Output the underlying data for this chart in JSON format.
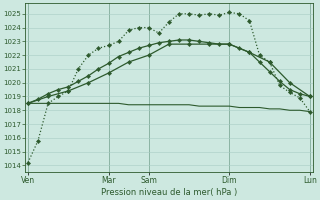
{
  "xlabel": "Pression niveau de la mer( hPa )",
  "bg_color": "#cde8e0",
  "grid_color": "#a8cdc5",
  "line_color": "#2d5a2d",
  "ylim": [
    1013.5,
    1025.8
  ],
  "xlim": [
    -0.3,
    28.3
  ],
  "yticks": [
    1014,
    1015,
    1016,
    1017,
    1018,
    1019,
    1020,
    1021,
    1022,
    1023,
    1024,
    1025
  ],
  "day_labels": [
    "Ven",
    "Mar",
    "Sam",
    "Dim",
    "Lun"
  ],
  "day_positions": [
    0,
    8,
    12,
    20,
    28
  ],
  "series": [
    {
      "x": [
        0,
        1,
        2,
        3,
        4,
        5,
        6,
        7,
        8,
        9,
        10,
        11,
        12,
        13,
        14,
        15,
        16,
        17,
        18,
        19,
        20,
        21,
        22,
        23,
        24,
        25,
        26,
        27,
        28
      ],
      "y": [
        1018.5,
        1018.5,
        1018.5,
        1018.5,
        1018.5,
        1018.5,
        1018.5,
        1018.5,
        1018.5,
        1018.5,
        1018.4,
        1018.4,
        1018.4,
        1018.4,
        1018.4,
        1018.4,
        1018.4,
        1018.3,
        1018.3,
        1018.3,
        1018.3,
        1018.2,
        1018.2,
        1018.2,
        1018.1,
        1018.1,
        1018.0,
        1018.0,
        1017.9
      ],
      "color": "#2d5a2d",
      "lw": 0.8,
      "ls": "-",
      "marker": null,
      "ms": 0
    },
    {
      "x": [
        0,
        1,
        2,
        3,
        4,
        5,
        6,
        7,
        8,
        9,
        10,
        11,
        12,
        13,
        14,
        15,
        16,
        17,
        18,
        19,
        20,
        21,
        22,
        23,
        24,
        25,
        26,
        27,
        28
      ],
      "y": [
        1014.2,
        1015.8,
        1018.5,
        1019.0,
        1019.4,
        1021.0,
        1022.0,
        1022.5,
        1022.7,
        1023.0,
        1023.8,
        1024.0,
        1024.0,
        1023.6,
        1024.4,
        1025.0,
        1025.0,
        1024.9,
        1025.0,
        1024.9,
        1025.1,
        1025.0,
        1024.5,
        1022.0,
        1021.5,
        1019.8,
        1019.3,
        1018.9,
        1017.9
      ],
      "color": "#2d5a2d",
      "lw": 0.9,
      "ls": ":",
      "marker": "D",
      "ms": 2.2
    },
    {
      "x": [
        0,
        1,
        2,
        3,
        4,
        5,
        6,
        7,
        8,
        9,
        10,
        11,
        12,
        13,
        14,
        15,
        16,
        17,
        18,
        19,
        20,
        21,
        22,
        23,
        24,
        25,
        26,
        27,
        28
      ],
      "y": [
        1018.5,
        1018.8,
        1019.2,
        1019.5,
        1019.7,
        1020.1,
        1020.5,
        1021.0,
        1021.4,
        1021.9,
        1022.2,
        1022.5,
        1022.7,
        1022.9,
        1023.0,
        1023.1,
        1023.1,
        1023.0,
        1022.9,
        1022.8,
        1022.8,
        1022.5,
        1022.2,
        1021.5,
        1020.8,
        1020.1,
        1019.5,
        1019.2,
        1019.0
      ],
      "color": "#2d5a2d",
      "lw": 0.9,
      "ls": "-",
      "marker": "D",
      "ms": 2.2
    },
    {
      "x": [
        0,
        2,
        4,
        6,
        8,
        10,
        12,
        14,
        16,
        18,
        20,
        22,
        24,
        26,
        28
      ],
      "y": [
        1018.5,
        1019.0,
        1019.4,
        1020.0,
        1020.7,
        1021.5,
        1022.0,
        1022.8,
        1022.8,
        1022.8,
        1022.8,
        1022.2,
        1021.5,
        1020.0,
        1019.0
      ],
      "color": "#2d5a2d",
      "lw": 0.9,
      "ls": "-",
      "marker": "D",
      "ms": 2.2
    }
  ],
  "vlines": [
    0,
    8,
    12,
    20,
    28
  ]
}
